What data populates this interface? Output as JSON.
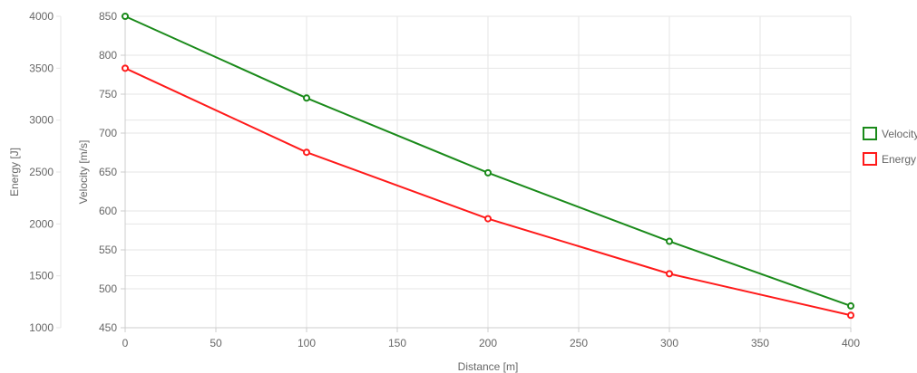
{
  "chart_data": {
    "type": "line",
    "x": [
      0,
      100,
      200,
      300,
      400
    ],
    "xlabel": "Distance [m]",
    "xlim": [
      0,
      400
    ],
    "xticks": [
      "0",
      "50",
      "100",
      "150",
      "200",
      "250",
      "300",
      "350",
      "400"
    ],
    "y_left": {
      "label": "Energy [J]",
      "lim": [
        1000,
        4000
      ],
      "ticks": [
        "1000",
        "1500",
        "2000",
        "2500",
        "3000",
        "3500",
        "4000"
      ]
    },
    "y_right_inner": {
      "label": "Velocity [m/s]",
      "lim": [
        450,
        850
      ],
      "ticks": [
        "450",
        "500",
        "550",
        "600",
        "650",
        "700",
        "750",
        "800",
        "850"
      ]
    },
    "series": [
      {
        "name": "Velocity",
        "axis": "velocity",
        "color": "#1a8a1a",
        "values": [
          850,
          745,
          649,
          561,
          478
        ]
      },
      {
        "name": "Energy",
        "axis": "energy",
        "color": "#ff1a1a",
        "values": [
          3500,
          2690,
          2050,
          1520,
          1120
        ]
      }
    ],
    "grid": true,
    "legend": "right"
  }
}
